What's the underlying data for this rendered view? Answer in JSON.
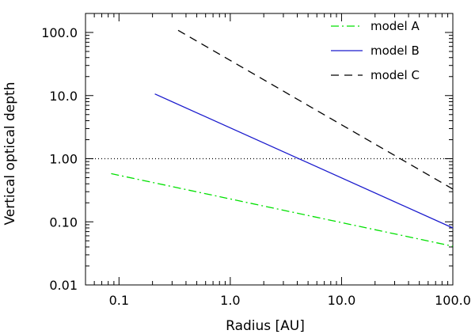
{
  "chart_data": {
    "type": "line",
    "xlabel": "Radius [AU]",
    "ylabel": "Vertical optical depth",
    "x_scale": "log",
    "y_scale": "log",
    "xlim": [
      0.05,
      100.0
    ],
    "ylim": [
      0.01,
      200.0
    ],
    "x_ticks": [
      0.1,
      1.0,
      10.0,
      100.0
    ],
    "x_tick_labels": [
      "0.1",
      "1.0",
      "10.0",
      "100.0"
    ],
    "y_ticks": [
      0.01,
      0.1,
      1.0,
      10.0,
      100.0
    ],
    "y_tick_labels": [
      "0.01",
      "0.10",
      "1.00",
      "10.0",
      "100.0"
    ],
    "grid": false,
    "legend_position": "top-right",
    "reference_line": {
      "y": 1.0,
      "style": "dotted",
      "color": "#000000"
    },
    "series": [
      {
        "name": "model A",
        "color": "#00e000",
        "style": "dash-dot",
        "x": [
          0.085,
          100.0
        ],
        "y": [
          0.58,
          0.041
        ]
      },
      {
        "name": "model B",
        "color": "#1a1acd",
        "style": "solid",
        "x": [
          0.21,
          100.0
        ],
        "y": [
          10.6,
          0.08
        ]
      },
      {
        "name": "model C",
        "color": "#000000",
        "style": "dashed",
        "x": [
          0.34,
          100.0
        ],
        "y": [
          108.0,
          0.33
        ]
      }
    ]
  }
}
